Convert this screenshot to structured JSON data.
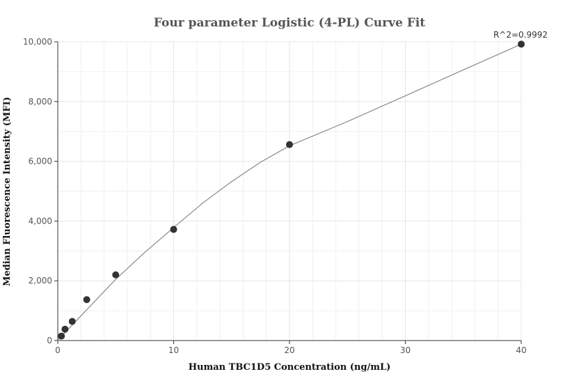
{
  "chart_data": {
    "type": "scatter",
    "title": "Four parameter Logistic (4-PL) Curve Fit",
    "xlabel": "Human TBC1D5 Concentration (ng/mL)",
    "ylabel": "Median Fluorescence Intensity (MFI)",
    "xlim": [
      0,
      40
    ],
    "ylim": [
      0,
      10000
    ],
    "x_ticks": [
      0,
      10,
      20,
      30,
      40
    ],
    "x_tick_labels": [
      "0",
      "10",
      "20",
      "30",
      "40"
    ],
    "y_ticks": [
      0,
      2000,
      4000,
      6000,
      8000,
      10000
    ],
    "y_tick_labels": [
      "0",
      "2,000",
      "4,000",
      "6,000",
      "8,000",
      "10,000"
    ],
    "grid": true,
    "annotation": "R^2=0.9992",
    "series": [
      {
        "type": "scatter",
        "x": [
          0.3125,
          0.625,
          1.25,
          2.5,
          5,
          10,
          20,
          40
        ],
        "y": [
          150,
          380,
          640,
          1370,
          2200,
          3720,
          6560,
          9920
        ]
      },
      {
        "type": "line",
        "x": [
          0,
          0.3125,
          0.625,
          1.25,
          2.5,
          5,
          7.5,
          10,
          12.5,
          15,
          17.5,
          20,
          25,
          30,
          35,
          40
        ],
        "y": [
          5,
          135,
          265,
          520,
          1030,
          2050,
          2950,
          3780,
          4600,
          5320,
          5970,
          6520,
          7330,
          8190,
          9060,
          9920
        ]
      }
    ],
    "colors": {
      "point": "#333333",
      "curve": "#888888",
      "grid": "#e6e6e6",
      "axis": "#333333"
    }
  }
}
